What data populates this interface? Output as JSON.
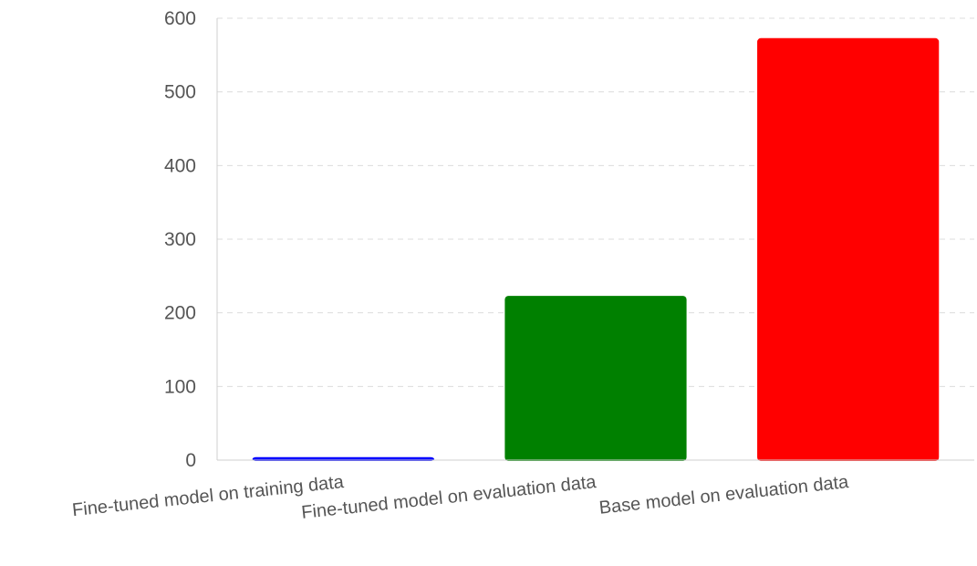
{
  "chart_data": {
    "type": "bar",
    "title": "",
    "xlabel": "",
    "ylabel": "",
    "categories": [
      "Fine-tuned model on training data",
      "Fine-tuned model on evaluation data",
      "Base model on evaluation data"
    ],
    "values": [
      4,
      223,
      573
    ],
    "colors": [
      "#0000ff",
      "#008000",
      "#ff0000"
    ],
    "ylim": [
      0,
      600
    ],
    "yticks": [
      0,
      100,
      200,
      300,
      400,
      500,
      600
    ],
    "grid": true,
    "legend": "none"
  }
}
